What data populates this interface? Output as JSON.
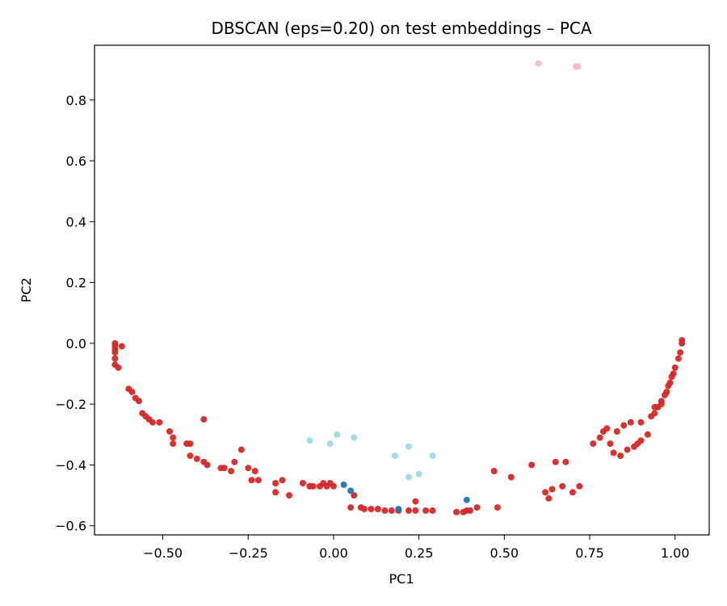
{
  "chart_data": {
    "type": "scatter",
    "title": "DBSCAN (eps=0.20) on test embeddings – PCA",
    "xlabel": "PC1",
    "ylabel": "PC2",
    "xlim": [
      -0.7,
      1.1
    ],
    "ylim": [
      -0.63,
      0.98
    ],
    "xticks": [
      -0.5,
      -0.25,
      0.0,
      0.25,
      0.5,
      0.75,
      1.0
    ],
    "xtick_labels": [
      "−0.50",
      "−0.25",
      "0.00",
      "0.25",
      "0.50",
      "0.75",
      "1.00"
    ],
    "yticks": [
      -0.6,
      -0.4,
      -0.2,
      0.0,
      0.2,
      0.4,
      0.6,
      0.8
    ],
    "ytick_labels": [
      "−0.6",
      "−0.4",
      "−0.2",
      "0.0",
      "0.2",
      "0.4",
      "0.6",
      "0.8"
    ],
    "grid": false,
    "series": [
      {
        "color": "#d62728",
        "points": [
          [
            -0.64,
            0.0
          ],
          [
            -0.64,
            -0.01
          ],
          [
            -0.64,
            -0.02
          ],
          [
            -0.64,
            -0.03
          ],
          [
            -0.64,
            -0.05
          ],
          [
            -0.64,
            -0.07
          ],
          [
            -0.63,
            -0.08
          ],
          [
            -0.62,
            -0.01
          ],
          [
            -0.6,
            -0.15
          ],
          [
            -0.59,
            -0.16
          ],
          [
            -0.58,
            -0.18
          ],
          [
            -0.57,
            -0.19
          ],
          [
            -0.56,
            -0.23
          ],
          [
            -0.55,
            -0.24
          ],
          [
            -0.54,
            -0.25
          ],
          [
            -0.53,
            -0.26
          ],
          [
            -0.51,
            -0.26
          ],
          [
            -0.48,
            -0.29
          ],
          [
            -0.47,
            -0.31
          ],
          [
            -0.47,
            -0.33
          ],
          [
            -0.43,
            -0.33
          ],
          [
            -0.42,
            -0.33
          ],
          [
            -0.42,
            -0.37
          ],
          [
            -0.4,
            -0.38
          ],
          [
            -0.38,
            -0.39
          ],
          [
            -0.37,
            -0.4
          ],
          [
            -0.38,
            -0.25
          ],
          [
            -0.33,
            -0.41
          ],
          [
            -0.32,
            -0.41
          ],
          [
            -0.3,
            -0.42
          ],
          [
            -0.29,
            -0.39
          ],
          [
            -0.27,
            -0.35
          ],
          [
            -0.25,
            -0.41
          ],
          [
            -0.23,
            -0.42
          ],
          [
            -0.24,
            -0.45
          ],
          [
            -0.22,
            -0.45
          ],
          [
            -0.17,
            -0.46
          ],
          [
            -0.17,
            -0.49
          ],
          [
            -0.15,
            -0.45
          ],
          [
            -0.13,
            -0.5
          ],
          [
            -0.09,
            -0.46
          ],
          [
            -0.07,
            -0.47
          ],
          [
            -0.06,
            -0.47
          ],
          [
            -0.04,
            -0.47
          ],
          [
            -0.03,
            -0.46
          ],
          [
            -0.02,
            -0.47
          ],
          [
            -0.01,
            -0.46
          ],
          [
            0.0,
            -0.47
          ],
          [
            0.06,
            -0.5
          ],
          [
            0.05,
            -0.54
          ],
          [
            0.08,
            -0.54
          ],
          [
            0.09,
            -0.545
          ],
          [
            0.11,
            -0.545
          ],
          [
            0.13,
            -0.545
          ],
          [
            0.15,
            -0.55
          ],
          [
            0.17,
            -0.55
          ],
          [
            0.19,
            -0.55
          ],
          [
            0.22,
            -0.55
          ],
          [
            0.24,
            -0.52
          ],
          [
            0.24,
            -0.55
          ],
          [
            0.27,
            -0.55
          ],
          [
            0.29,
            -0.55
          ],
          [
            0.36,
            -0.555
          ],
          [
            0.38,
            -0.555
          ],
          [
            0.39,
            -0.55
          ],
          [
            0.4,
            -0.55
          ],
          [
            0.42,
            -0.54
          ],
          [
            0.47,
            -0.42
          ],
          [
            0.48,
            -0.54
          ],
          [
            0.52,
            -0.44
          ],
          [
            0.58,
            -0.4
          ],
          [
            0.62,
            -0.49
          ],
          [
            0.63,
            -0.51
          ],
          [
            0.64,
            -0.48
          ],
          [
            0.65,
            -0.39
          ],
          [
            0.67,
            -0.47
          ],
          [
            0.68,
            -0.39
          ],
          [
            0.7,
            -0.49
          ],
          [
            0.72,
            -0.47
          ],
          [
            0.76,
            -0.33
          ],
          [
            0.78,
            -0.31
          ],
          [
            0.79,
            -0.29
          ],
          [
            0.8,
            -0.28
          ],
          [
            0.81,
            -0.33
          ],
          [
            0.82,
            -0.36
          ],
          [
            0.83,
            -0.29
          ],
          [
            0.84,
            -0.37
          ],
          [
            0.85,
            -0.27
          ],
          [
            0.86,
            -0.35
          ],
          [
            0.87,
            -0.26
          ],
          [
            0.88,
            -0.34
          ],
          [
            0.89,
            -0.33
          ],
          [
            0.9,
            -0.32
          ],
          [
            0.9,
            -0.26
          ],
          [
            0.92,
            -0.3
          ],
          [
            0.93,
            -0.24
          ],
          [
            0.94,
            -0.23
          ],
          [
            0.95,
            -0.21
          ],
          [
            0.96,
            -0.2
          ],
          [
            0.97,
            -0.17
          ],
          [
            0.98,
            -0.14
          ],
          [
            0.99,
            -0.11
          ],
          [
            1.0,
            -0.08
          ],
          [
            1.01,
            -0.05
          ],
          [
            1.015,
            -0.03
          ],
          [
            1.02,
            0.0
          ],
          [
            1.02,
            0.01
          ],
          [
            0.995,
            -0.1
          ],
          [
            0.985,
            -0.13
          ],
          [
            0.975,
            -0.16
          ],
          [
            0.96,
            -0.19
          ],
          [
            0.94,
            -0.21
          ]
        ]
      },
      {
        "color": "#9edae5",
        "points": [
          [
            -0.07,
            -0.32
          ],
          [
            -0.01,
            -0.33
          ],
          [
            0.01,
            -0.3
          ],
          [
            0.06,
            -0.31
          ],
          [
            0.18,
            -0.37
          ],
          [
            0.22,
            -0.34
          ],
          [
            0.22,
            -0.44
          ],
          [
            0.25,
            -0.43
          ],
          [
            0.29,
            -0.37
          ]
        ]
      },
      {
        "color": "#1f77b4",
        "points": [
          [
            0.03,
            -0.465
          ],
          [
            0.05,
            -0.485
          ],
          [
            0.19,
            -0.545
          ],
          [
            0.39,
            -0.515
          ]
        ]
      },
      {
        "color": "#f7b6d2",
        "points": [
          [
            0.6,
            0.92
          ],
          [
            0.71,
            0.91
          ],
          [
            0.715,
            0.91
          ]
        ]
      }
    ]
  }
}
